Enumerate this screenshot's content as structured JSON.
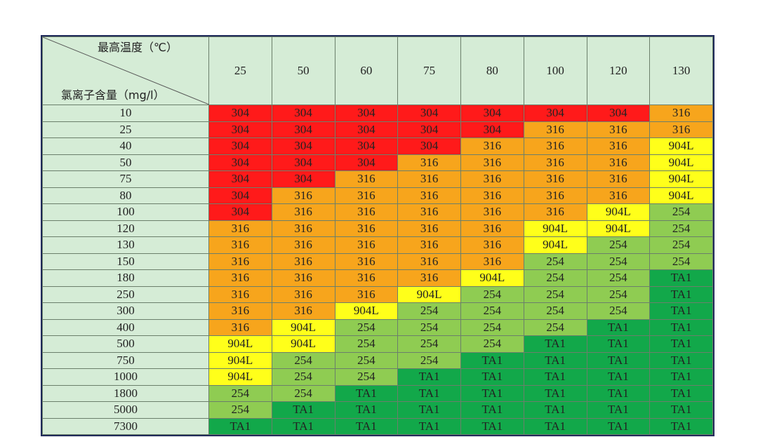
{
  "table": {
    "corner_top": "最高温度（℃）",
    "corner_bottom": "氯离子含量（mg/l）",
    "columns": [
      25,
      50,
      60,
      75,
      80,
      100,
      120,
      130
    ],
    "colors": {
      "304": "#ff1a1a",
      "316": "#f7a51c",
      "904L": "#ffff1a",
      "254": "#8fcc52",
      "TA1": "#12a84a"
    },
    "header_color": "#d5ecd6",
    "rows": [
      {
        "label": 10,
        "cells": [
          "304",
          "304",
          "304",
          "304",
          "304",
          "304",
          "304",
          "316"
        ]
      },
      {
        "label": 25,
        "cells": [
          "304",
          "304",
          "304",
          "304",
          "304",
          "316",
          "316",
          "316"
        ]
      },
      {
        "label": 40,
        "cells": [
          "304",
          "304",
          "304",
          "304",
          "316",
          "316",
          "316",
          "904L"
        ]
      },
      {
        "label": 50,
        "cells": [
          "304",
          "304",
          "304",
          "316",
          "316",
          "316",
          "316",
          "904L"
        ]
      },
      {
        "label": 75,
        "cells": [
          "304",
          "304",
          "316",
          "316",
          "316",
          "316",
          "316",
          "904L"
        ]
      },
      {
        "label": 80,
        "cells": [
          "304",
          "316",
          "316",
          "316",
          "316",
          "316",
          "316",
          "904L"
        ]
      },
      {
        "label": 100,
        "cells": [
          "304",
          "316",
          "316",
          "316",
          "316",
          "316",
          "904L",
          "254"
        ]
      },
      {
        "label": 120,
        "cells": [
          "316",
          "316",
          "316",
          "316",
          "316",
          "904L",
          "904L",
          "254"
        ]
      },
      {
        "label": 130,
        "cells": [
          "316",
          "316",
          "316",
          "316",
          "316",
          "904L",
          "254",
          "254"
        ]
      },
      {
        "label": 150,
        "cells": [
          "316",
          "316",
          "316",
          "316",
          "316",
          "254",
          "254",
          "254"
        ]
      },
      {
        "label": 180,
        "cells": [
          "316",
          "316",
          "316",
          "316",
          "904L",
          "254",
          "254",
          "TA1"
        ]
      },
      {
        "label": 250,
        "cells": [
          "316",
          "316",
          "316",
          "904L",
          "254",
          "254",
          "254",
          "TA1"
        ]
      },
      {
        "label": 300,
        "cells": [
          "316",
          "316",
          "904L",
          "254",
          "254",
          "254",
          "254",
          "TA1"
        ]
      },
      {
        "label": 400,
        "cells": [
          "316",
          "904L",
          "254",
          "254",
          "254",
          "254",
          "TA1",
          "TA1"
        ]
      },
      {
        "label": 500,
        "cells": [
          "904L",
          "904L",
          "254",
          "254",
          "254",
          "TA1",
          "TA1",
          "TA1"
        ]
      },
      {
        "label": 750,
        "cells": [
          "904L",
          "254",
          "254",
          "254",
          "TA1",
          "TA1",
          "TA1",
          "TA1"
        ]
      },
      {
        "label": 1000,
        "cells": [
          "904L",
          "254",
          "254",
          "TA1",
          "TA1",
          "TA1",
          "TA1",
          "TA1"
        ]
      },
      {
        "label": 1800,
        "cells": [
          "254",
          "254",
          "TA1",
          "TA1",
          "TA1",
          "TA1",
          "TA1",
          "TA1"
        ]
      },
      {
        "label": 5000,
        "cells": [
          "254",
          "TA1",
          "TA1",
          "TA1",
          "TA1",
          "TA1",
          "TA1",
          "TA1"
        ]
      },
      {
        "label": 7300,
        "cells": [
          "TA1",
          "TA1",
          "TA1",
          "TA1",
          "TA1",
          "TA1",
          "TA1",
          "TA1"
        ]
      }
    ]
  }
}
